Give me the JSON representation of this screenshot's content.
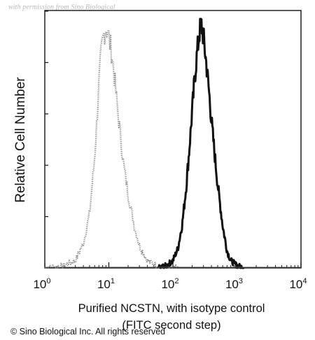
{
  "watermark": "with permission from Sino Biological",
  "copyright": "© Sino Biological Inc. All rights reserved",
  "chart_data": {
    "type": "line",
    "title": "",
    "xlabel": "Purified NCSTN, with isotype control",
    "xlabel_line2": "(FITC second step)",
    "ylabel": "Relative Cell Number",
    "x_scale": "log",
    "xlim": [
      1,
      10000
    ],
    "x_ticks": [
      {
        "base": "10",
        "exp": "0",
        "value": 1
      },
      {
        "base": "10",
        "exp": "1",
        "value": 10
      },
      {
        "base": "10",
        "exp": "2",
        "value": 100
      },
      {
        "base": "10",
        "exp": "3",
        "value": 1000
      },
      {
        "base": "10",
        "exp": "4",
        "value": 10000
      }
    ],
    "ylim": [
      0,
      100
    ],
    "grid": false,
    "series": [
      {
        "style": "dotted",
        "color": "#8a8a8a",
        "x": [
          1,
          2,
          3,
          4,
          5,
          6,
          6.5,
          7,
          7.5,
          8,
          8.5,
          9,
          9.5,
          10,
          11,
          12,
          13,
          15,
          17,
          20,
          25,
          30,
          40,
          55,
          80,
          120
        ],
        "y": [
          0,
          1,
          3,
          10,
          22,
          45,
          60,
          75,
          86,
          92,
          96,
          98,
          97,
          94,
          88,
          80,
          70,
          55,
          42,
          30,
          17,
          9,
          3,
          1,
          0.3,
          0
        ]
      },
      {
        "style": "solid",
        "color": "#111111",
        "x": [
          60,
          80,
          100,
          120,
          140,
          160,
          180,
          200,
          220,
          240,
          260,
          280,
          300,
          330,
          360,
          400,
          450,
          500,
          600,
          700,
          800,
          1000,
          1300
        ],
        "y": [
          0,
          1,
          3,
          8,
          18,
          32,
          48,
          64,
          78,
          88,
          96,
          99,
          94,
          84,
          74,
          60,
          46,
          34,
          17,
          7,
          3,
          1,
          0
        ]
      }
    ]
  }
}
